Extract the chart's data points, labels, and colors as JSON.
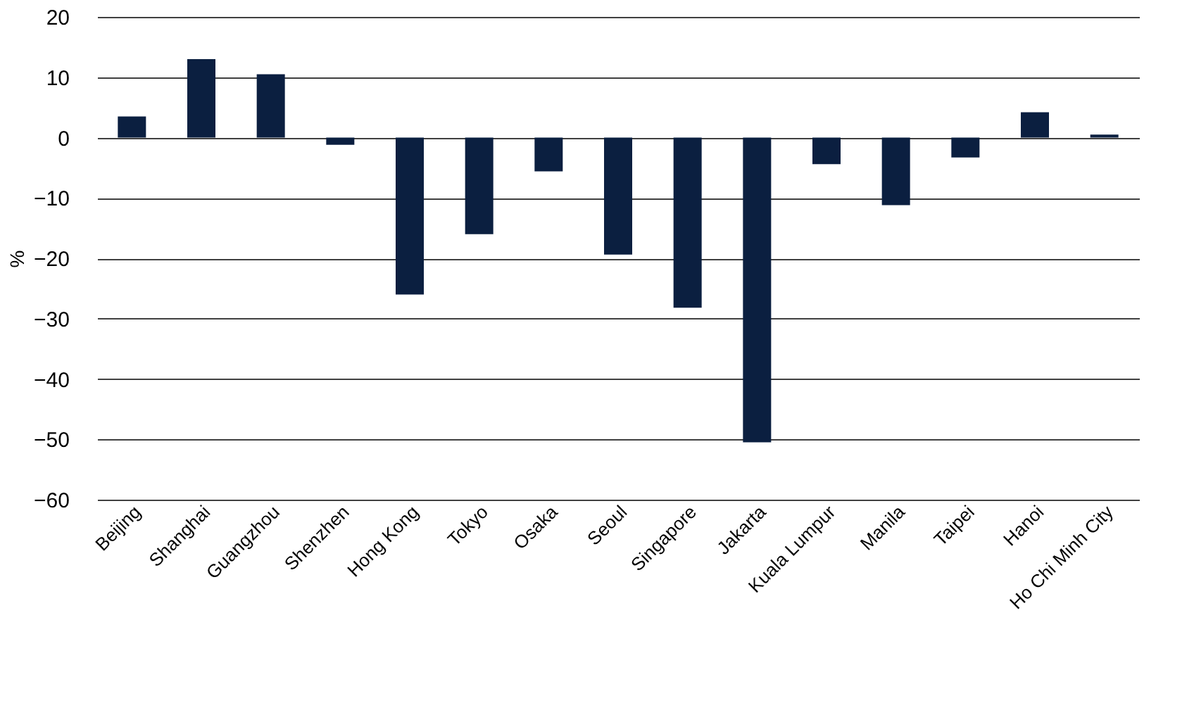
{
  "chart_data": {
    "type": "bar",
    "ylabel": "%",
    "categories": [
      "Beijing",
      "Shanghai",
      "Guangzhou",
      "Shenzhen",
      "Hong Kong",
      "Tokyo",
      "Osaka",
      "Seoul",
      "Singapore",
      "Jakarta",
      "Kuala Lumpur",
      "Manila",
      "Taipei",
      "Hanoi",
      "Ho Chi Minh City"
    ],
    "values": [
      3.5,
      13,
      10.5,
      -1.2,
      -26,
      -16,
      -5.6,
      -19.4,
      -28.2,
      -50.5,
      -4.4,
      -11.2,
      -3.3,
      4.2,
      0.5
    ],
    "color": "#0b1f40",
    "ylim": [
      -60,
      20
    ],
    "yticks": [
      -60,
      -50,
      -40,
      -30,
      -20,
      -10,
      0,
      10,
      20
    ],
    "grid": "y"
  }
}
